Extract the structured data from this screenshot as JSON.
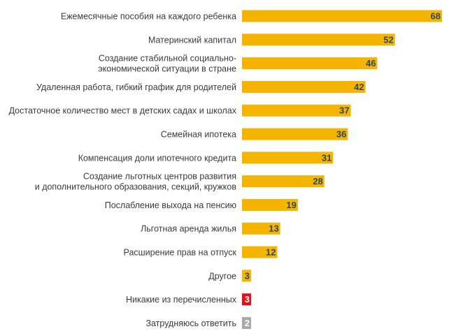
{
  "chart_data": {
    "type": "bar",
    "orientation": "horizontal",
    "title": "",
    "xlabel": "",
    "ylabel": "",
    "categories": [
      [
        "Ежемесячные пособия на каждого ребенка"
      ],
      [
        "Материнский капитал"
      ],
      [
        "Создание стабильной социально-",
        "экономической ситуации в стране"
      ],
      [
        "Удаленная работа, гибкий график для родителей"
      ],
      [
        "Достаточное количество мест в детских садах и школах"
      ],
      [
        "Семейная ипотека"
      ],
      [
        "Компенсация доли ипотечного кредита"
      ],
      [
        "Создание льготных центров развития",
        "и дополнительного образования, секций, кружков"
      ],
      [
        "Послабление выхода на пенсию"
      ],
      [
        "Льготная аренда жилья"
      ],
      [
        "Расширение прав на отпуск"
      ],
      [
        "Другое"
      ],
      [
        "Никакие из перечисленных"
      ],
      [
        "Затрудняюсь ответить"
      ]
    ],
    "values": [
      68,
      52,
      46,
      42,
      37,
      36,
      31,
      28,
      19,
      13,
      12,
      3,
      3,
      2
    ],
    "bar_colors": [
      "#F5B400",
      "#F5B400",
      "#F5B400",
      "#F5B400",
      "#F5B400",
      "#F5B400",
      "#F5B400",
      "#F5B400",
      "#F5B400",
      "#F5B400",
      "#F5B400",
      "#F5B400",
      "#E3101B",
      "#A9A9A9"
    ],
    "value_label_colors": [
      "#2E4A66",
      "#2E4A66",
      "#2E4A66",
      "#2E4A66",
      "#2E4A66",
      "#2E4A66",
      "#2E4A66",
      "#2E4A66",
      "#2E4A66",
      "#2E4A66",
      "#2E4A66",
      "#2E4A66",
      "#FFFFFF",
      "#FFFFFF"
    ],
    "xlim": [
      0,
      68
    ],
    "grid": false,
    "legend": "none"
  }
}
